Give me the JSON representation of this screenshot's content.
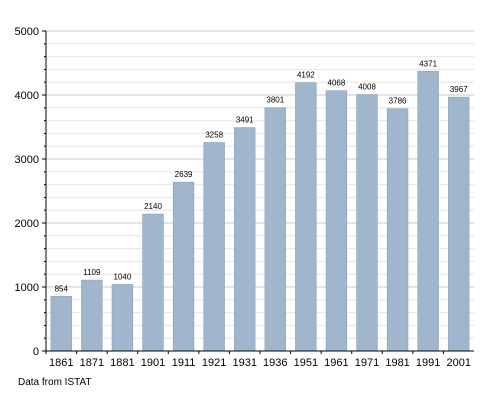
{
  "chart_data": {
    "type": "bar",
    "categories": [
      "1861",
      "1871",
      "1881",
      "1901",
      "1911",
      "1921",
      "1931",
      "1936",
      "1951",
      "1961",
      "1971",
      "1981",
      "1991",
      "2001"
    ],
    "values": [
      854,
      1109,
      1040,
      2140,
      2639,
      3258,
      3491,
      3801,
      4192,
      4068,
      4008,
      3786,
      4371,
      3967
    ],
    "data_labels": [
      "854",
      "1109",
      "1040",
      "2140",
      "2639",
      "3258",
      "3491",
      "3801",
      "4192",
      "4068",
      "4008",
      "3786",
      "4371",
      "3967"
    ],
    "y_ticks": [
      0,
      1000,
      2000,
      3000,
      4000,
      5000
    ],
    "y_tick_labels": [
      "0",
      "1000",
      "2000",
      "3000",
      "4000",
      "5000"
    ],
    "ylim": [
      0,
      5000
    ],
    "minor_step": 200,
    "grid": true,
    "legend": "none",
    "bar_color": "#9fb6cd",
    "bar_stroke": "#8aa3bb"
  },
  "source_note": "Data from ISTAT"
}
